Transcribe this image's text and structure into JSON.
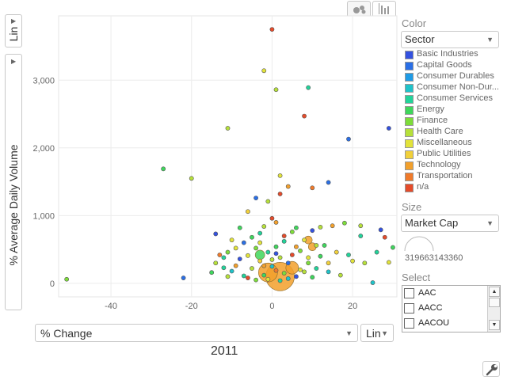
{
  "view_tabs": [
    {
      "name": "bubble-chart",
      "icon": "bubble-chart-icon"
    },
    {
      "name": "bar-chart",
      "icon": "bar-chart-icon"
    }
  ],
  "y_scale": {
    "value": "Lin"
  },
  "y_metric": {
    "label": "% Average Daily Volume"
  },
  "x_metric": {
    "label": "% Change"
  },
  "x_scale": {
    "value": "Lin"
  },
  "time_label": "2011",
  "color": {
    "title": "Color",
    "selected": "Sector",
    "legend": [
      {
        "label": "Basic Industries",
        "color": "#3452e0"
      },
      {
        "label": "Capital Goods",
        "color": "#2a6fe6"
      },
      {
        "label": "Consumer Durables",
        "color": "#1f9be6"
      },
      {
        "label": "Consumer Non-Dur...",
        "color": "#1fc3c9"
      },
      {
        "label": "Consumer Services",
        "color": "#22d39a"
      },
      {
        "label": "Energy",
        "color": "#3fd65c"
      },
      {
        "label": "Finance",
        "color": "#7ddc3a"
      },
      {
        "label": "Health Care",
        "color": "#b6e03a"
      },
      {
        "label": "Miscellaneous",
        "color": "#e2e33a"
      },
      {
        "label": "Public Utilities",
        "color": "#f1d03a"
      },
      {
        "label": "Technology",
        "color": "#f2a02c"
      },
      {
        "label": "Transportation",
        "color": "#f07a2a"
      },
      {
        "label": "n/a",
        "color": "#e54b2a"
      }
    ]
  },
  "size": {
    "title": "Size",
    "selected": "Market Cap",
    "max_value_label": "319663143360"
  },
  "select": {
    "title": "Select",
    "items": [
      "AAC",
      "AACC",
      "AACOU"
    ]
  },
  "settings_icon": "wrench-icon",
  "chart_data": {
    "type": "scatter",
    "title": "",
    "xlabel": "% Change",
    "ylabel": "% Average Daily Volume",
    "xlim": [
      -53,
      31
    ],
    "ylim": [
      -200,
      3950
    ],
    "x_ticks": [
      -40,
      -20,
      0,
      20
    ],
    "x_tick_labels": [
      "-40",
      "-20",
      "0",
      "20"
    ],
    "y_ticks": [
      0,
      1000,
      2000,
      3000
    ],
    "y_tick_labels": [
      "0",
      "1,000",
      "2,000",
      "3,000"
    ],
    "grid": true,
    "points": [
      {
        "x": 0,
        "y": 3750,
        "c": "#e54b2a"
      },
      {
        "x": -2,
        "y": 3140,
        "c": "#e2e33a"
      },
      {
        "x": 1,
        "y": 2860,
        "c": "#b6e03a"
      },
      {
        "x": 9,
        "y": 2890,
        "c": "#22d39a"
      },
      {
        "x": 8,
        "y": 2470,
        "c": "#e54b2a"
      },
      {
        "x": -11,
        "y": 2290,
        "c": "#b6e03a"
      },
      {
        "x": 29,
        "y": 2290,
        "c": "#3452e0"
      },
      {
        "x": 19,
        "y": 2130,
        "c": "#2a6fe6"
      },
      {
        "x": -27,
        "y": 1690,
        "c": "#3fd65c"
      },
      {
        "x": -20,
        "y": 1550,
        "c": "#b6e03a"
      },
      {
        "x": 2,
        "y": 1590,
        "c": "#e2e33a"
      },
      {
        "x": 14,
        "y": 1490,
        "c": "#2a6fe6"
      },
      {
        "x": 4,
        "y": 1430,
        "c": "#f2a02c"
      },
      {
        "x": 10,
        "y": 1410,
        "c": "#f07a2a"
      },
      {
        "x": 2,
        "y": 1320,
        "c": "#e54b2a"
      },
      {
        "x": -4,
        "y": 1260,
        "c": "#2a6fe6"
      },
      {
        "x": -1,
        "y": 1210,
        "c": "#b6e03a"
      },
      {
        "x": -6,
        "y": 1060,
        "c": "#f1d03a"
      },
      {
        "x": -51,
        "y": 60,
        "c": "#7ddc3a"
      },
      {
        "x": -22,
        "y": 80,
        "c": "#2a6fe6"
      },
      {
        "x": -14,
        "y": 730,
        "c": "#3452e0"
      },
      {
        "x": 25,
        "y": 10,
        "c": "#1fc3c9"
      },
      {
        "x": 27,
        "y": 790,
        "c": "#3452e0"
      },
      {
        "x": 28,
        "y": 680,
        "c": "#e54b2a"
      },
      {
        "x": 22,
        "y": 850,
        "c": "#b6e03a"
      },
      {
        "x": 22,
        "y": 700,
        "c": "#22d39a"
      },
      {
        "x": 30,
        "y": 530,
        "c": "#3fd65c"
      },
      {
        "x": 29,
        "y": 310,
        "c": "#e2e33a"
      },
      {
        "x": 26,
        "y": 460,
        "c": "#22d39a"
      },
      {
        "x": 18,
        "y": 890,
        "c": "#7ddc3a"
      },
      {
        "x": 15,
        "y": 850,
        "c": "#f2a02c"
      },
      {
        "x": 12,
        "y": 830,
        "c": "#b6e03a"
      },
      {
        "x": 10,
        "y": 780,
        "c": "#3452e0"
      },
      {
        "x": 16,
        "y": 460,
        "c": "#f1d03a"
      },
      {
        "x": 12,
        "y": 400,
        "c": "#3fd65c"
      },
      {
        "x": 8,
        "y": 640,
        "c": "#e2e33a"
      },
      {
        "x": 6,
        "y": 540,
        "c": "#f2a02c"
      },
      {
        "x": 9,
        "y": 300,
        "c": "#7ddc3a"
      },
      {
        "x": 11,
        "y": 220,
        "c": "#22d39a"
      },
      {
        "x": 14,
        "y": 170,
        "c": "#1fc3c9"
      },
      {
        "x": 17,
        "y": 120,
        "c": "#b6e03a"
      },
      {
        "x": 20,
        "y": 330,
        "c": "#e2e33a"
      },
      {
        "x": 13,
        "y": 560,
        "c": "#3fd65c"
      },
      {
        "x": 5,
        "y": 760,
        "c": "#7ddc3a"
      },
      {
        "x": 3,
        "y": 700,
        "c": "#e54b2a"
      },
      {
        "x": 1,
        "y": 900,
        "c": "#f2a02c"
      },
      {
        "x": 0,
        "y": 960,
        "c": "#e54b2a"
      },
      {
        "x": -2,
        "y": 840,
        "c": "#b6e03a"
      },
      {
        "x": -3,
        "y": 740,
        "c": "#22d39a"
      },
      {
        "x": -5,
        "y": 680,
        "c": "#3fd65c"
      },
      {
        "x": -7,
        "y": 600,
        "c": "#2a6fe6"
      },
      {
        "x": -9,
        "y": 520,
        "c": "#e2e33a"
      },
      {
        "x": -11,
        "y": 460,
        "c": "#7ddc3a"
      },
      {
        "x": -13,
        "y": 420,
        "c": "#f07a2a"
      },
      {
        "x": -14,
        "y": 300,
        "c": "#b6e03a"
      },
      {
        "x": -15,
        "y": 160,
        "c": "#3fd65c"
      },
      {
        "x": -12,
        "y": 230,
        "c": "#22d39a"
      },
      {
        "x": -10,
        "y": 180,
        "c": "#1fc3c9"
      },
      {
        "x": -8,
        "y": 360,
        "c": "#3452e0"
      },
      {
        "x": -6,
        "y": 410,
        "c": "#e2e33a"
      },
      {
        "x": -4,
        "y": 520,
        "c": "#7ddc3a"
      },
      {
        "x": -3,
        "y": 330,
        "c": "#f1d03a"
      },
      {
        "x": -1,
        "y": 460,
        "c": "#22d39a"
      },
      {
        "x": 1,
        "y": 540,
        "c": "#3fd65c"
      },
      {
        "x": 2,
        "y": 380,
        "c": "#b6e03a"
      },
      {
        "x": 4,
        "y": 300,
        "c": "#2a6fe6"
      },
      {
        "x": 5,
        "y": 420,
        "c": "#e54b2a"
      },
      {
        "x": 7,
        "y": 200,
        "c": "#e2e33a"
      },
      {
        "x": 3,
        "y": 150,
        "c": "#7ddc3a"
      },
      {
        "x": 0,
        "y": 250,
        "c": "#1fc3c9"
      },
      {
        "x": -2,
        "y": 120,
        "c": "#3fd65c"
      },
      {
        "x": -5,
        "y": 220,
        "c": "#b6e03a"
      },
      {
        "x": -7,
        "y": 110,
        "c": "#22d39a"
      },
      {
        "x": -9,
        "y": 260,
        "c": "#f2a02c"
      },
      {
        "x": 6,
        "y": 100,
        "c": "#3452e0"
      },
      {
        "x": 8,
        "y": 170,
        "c": "#b6e03a"
      },
      {
        "x": 10,
        "y": 90,
        "c": "#3fd65c"
      },
      {
        "x": -1,
        "y": 60,
        "c": "#e2e33a"
      },
      {
        "x": 2,
        "y": 40,
        "c": "#22d39a"
      },
      {
        "x": -4,
        "y": 50,
        "c": "#7ddc3a"
      },
      {
        "x": 4,
        "y": 70,
        "c": "#1fc3c9"
      },
      {
        "x": -6,
        "y": 80,
        "c": "#e54b2a"
      },
      {
        "x": 1,
        "y": 190,
        "c": "#f07a2a"
      },
      {
        "x": -3,
        "y": 600,
        "c": "#e2e33a"
      },
      {
        "x": 3,
        "y": 620,
        "c": "#22d39a"
      },
      {
        "x": 6,
        "y": 820,
        "c": "#3fd65c"
      },
      {
        "x": -8,
        "y": 820,
        "c": "#3fd65c"
      },
      {
        "x": -10,
        "y": 640,
        "c": "#e2e33a"
      },
      {
        "x": 0,
        "y": 350,
        "c": "#b6e03a"
      },
      {
        "x": 1,
        "y": 440,
        "c": "#3452e0"
      },
      {
        "x": -2,
        "y": 260,
        "c": "#f2a02c"
      },
      {
        "x": 7,
        "y": 480,
        "c": "#7ddc3a"
      },
      {
        "x": 9,
        "y": 380,
        "c": "#e2e33a"
      },
      {
        "x": -12,
        "y": 380,
        "c": "#22d39a"
      },
      {
        "x": 11,
        "y": 560,
        "c": "#b6e03a"
      },
      {
        "x": 14,
        "y": 300,
        "c": "#f1d03a"
      },
      {
        "x": -11,
        "y": 100,
        "c": "#b6e03a"
      },
      {
        "x": 19,
        "y": 420,
        "c": "#22d39a"
      },
      {
        "x": 23,
        "y": 300,
        "c": "#b6e03a"
      }
    ],
    "bubbles": [
      {
        "x": 2,
        "y": 100,
        "c": "#f2a02c",
        "r": 18
      },
      {
        "x": -1,
        "y": 160,
        "c": "#f2a02c",
        "r": 12
      },
      {
        "x": 5,
        "y": 230,
        "c": "#f2a02c",
        "r": 8
      },
      {
        "x": 10,
        "y": 540,
        "c": "#f2a02c",
        "r": 5
      },
      {
        "x": 9,
        "y": 640,
        "c": "#f2a02c",
        "r": 5
      },
      {
        "x": -3,
        "y": 420,
        "c": "#3fd65c",
        "r": 6
      }
    ]
  }
}
